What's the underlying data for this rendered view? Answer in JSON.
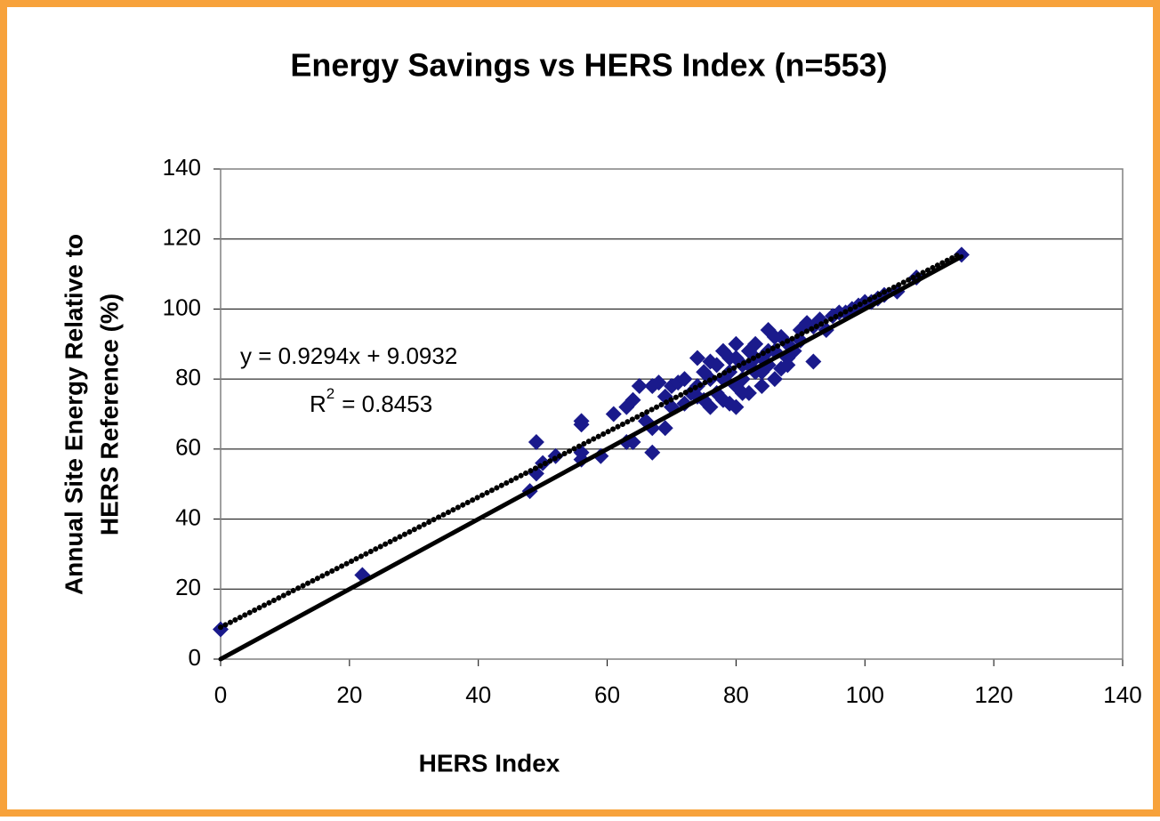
{
  "chart_data": {
    "type": "scatter",
    "title": "Energy Savings vs HERS Index (n=553)",
    "xlabel": "HERS Index",
    "ylabel": [
      "Annual Site Energy Relative to",
      "HERS Reference (%)"
    ],
    "annotations": {
      "equation": "y = 0.9294x + 9.0932",
      "r2_label": "R",
      "r2_sup": "2",
      "r2_value": "= 0.8453"
    },
    "xlim": [
      0,
      140
    ],
    "xticks": [
      0,
      20,
      40,
      60,
      80,
      100,
      120,
      140
    ],
    "ylim": [
      0,
      140
    ],
    "yticks": [
      0,
      20,
      40,
      60,
      80,
      100,
      120,
      140
    ],
    "grid": true,
    "color": "#1a1a8c",
    "x": [
      0,
      22,
      48,
      49,
      49,
      50,
      52,
      56,
      56,
      56,
      56,
      59,
      61,
      63,
      63,
      64,
      64,
      65,
      66,
      67,
      67,
      67,
      68,
      69,
      69,
      70,
      70,
      71,
      72,
      73,
      74,
      74,
      75,
      75,
      76,
      76,
      77,
      77,
      78,
      78,
      79,
      79,
      80,
      80,
      80,
      80,
      81,
      81,
      82,
      82,
      83,
      83,
      84,
      84,
      85,
      85,
      86,
      86,
      87,
      87,
      88,
      88,
      89,
      90,
      90,
      91,
      92,
      92,
      93,
      94,
      95,
      96,
      97,
      98,
      99,
      100,
      101,
      102,
      103,
      105,
      108,
      115,
      72,
      74,
      76,
      78,
      82,
      84,
      86,
      88,
      79,
      81,
      83,
      85
    ],
    "y": [
      8.5,
      24,
      48,
      62,
      53,
      56,
      58,
      67,
      68,
      57,
      59,
      58,
      70,
      72,
      62,
      62,
      74,
      78,
      68,
      59,
      66,
      78,
      79,
      66,
      75,
      78,
      72,
      79,
      73,
      76,
      86,
      78,
      74,
      82,
      72,
      80,
      84,
      76,
      88,
      74,
      82,
      73,
      90,
      86,
      78,
      72,
      84,
      80,
      88,
      76,
      90,
      82,
      78,
      86,
      94,
      84,
      88,
      80,
      92,
      83,
      90,
      86,
      88,
      94,
      91,
      96,
      85,
      95,
      97,
      94,
      98,
      99,
      99,
      100,
      101,
      102,
      102,
      103,
      104,
      105,
      109,
      115.5,
      80,
      75,
      85,
      80,
      84,
      82,
      92,
      84,
      86,
      76,
      86,
      88
    ],
    "lines": [
      {
        "x": [
          0,
          115
        ],
        "y": [
          0,
          115
        ],
        "style": "solid"
      },
      {
        "x": [
          0,
          115
        ],
        "y": [
          9.0932,
          115.97
        ],
        "style": "dotted"
      }
    ]
  }
}
